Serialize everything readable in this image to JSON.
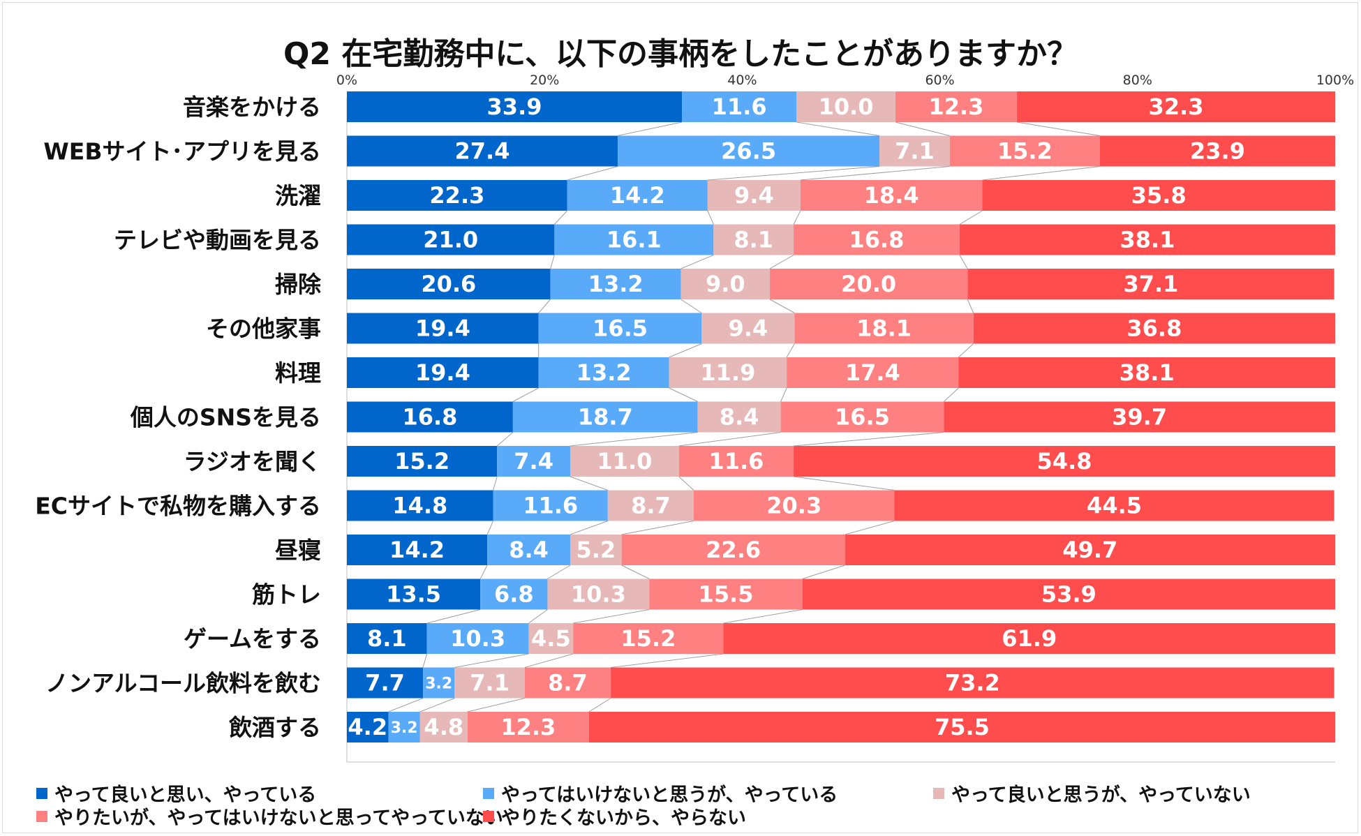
{
  "colors": [
    "#0066cc",
    "#5aaafa",
    "#e6b8b7",
    "#ff8080",
    "#ff4d4d"
  ],
  "chart_data": {
    "type": "bar",
    "orientation": "horizontal-stacked-100",
    "title": "Q2 在宅勤務中に、以下の事柄をしたことがありますか？",
    "xlim": [
      0,
      100
    ],
    "x_ticks": [
      "0%",
      "20%",
      "40%",
      "60%",
      "80%",
      "100%"
    ],
    "categories": [
      "音楽をかける",
      "WEBサイト･アプリを見る",
      "洗濯",
      "テレビや動画を見る",
      "掃除",
      "その他家事",
      "料理",
      "個人のSNSを見る",
      "ラジオを聞く",
      "ECサイトで私物を購入する",
      "昼寝",
      "筋トレ",
      "ゲームをする",
      "ノンアルコール飲料を飲む",
      "飲酒する"
    ],
    "series": [
      {
        "name": "やって良いと思い、やっている",
        "values": [
          33.9,
          27.4,
          22.3,
          21.0,
          20.6,
          19.4,
          19.4,
          16.8,
          15.2,
          14.8,
          14.2,
          13.5,
          8.1,
          7.7,
          4.2
        ],
        "labels": [
          "33.9",
          "27.4",
          "22.3",
          "21.0",
          "20.6",
          "19.4",
          "19.4",
          "16.8",
          "15.2",
          "14.8",
          "14.2",
          "13.5",
          "8.1",
          "7.7",
          "4.2"
        ]
      },
      {
        "name": "やってはいけないと思うが、やっている",
        "values": [
          11.6,
          26.5,
          14.2,
          16.1,
          13.2,
          16.5,
          13.2,
          18.7,
          7.4,
          11.6,
          8.4,
          6.8,
          10.3,
          3.2,
          3.2
        ],
        "labels": [
          "11.6",
          "26.5",
          "14.2",
          "16.1",
          "13.2",
          "16.5",
          "13.2",
          "18.7",
          "7.4",
          "11.6",
          "8.4",
          "6.8",
          "10.3",
          "3.2",
          "3.2"
        ]
      },
      {
        "name": "やって良いと思うが、やっていない",
        "values": [
          10.0,
          7.1,
          9.4,
          8.1,
          9.0,
          9.4,
          11.9,
          8.4,
          11.0,
          8.7,
          5.2,
          10.3,
          4.5,
          7.1,
          4.8
        ],
        "labels": [
          "10.0",
          "7.1",
          "9.4",
          "8.1",
          "9.0",
          "9.4",
          "11.9",
          "8.4",
          "11.0",
          "8.7",
          "5.2",
          "10.3",
          "4.5",
          "7.1",
          "4.8"
        ]
      },
      {
        "name": "やりたいが、やってはいけないと思ってやっていない",
        "values": [
          12.3,
          15.2,
          18.4,
          16.8,
          20.0,
          18.1,
          17.4,
          16.5,
          11.6,
          20.3,
          22.6,
          15.5,
          15.2,
          8.7,
          12.3
        ],
        "labels": [
          "12.3",
          "15.2",
          "18.4",
          "16.8",
          "20.0",
          "18.1",
          "17.4",
          "16.5",
          "11.6",
          "20.3",
          "22.6",
          "15.5",
          "15.2",
          "8.7",
          "12.3"
        ]
      },
      {
        "name": "やりたくないから、やらない",
        "values": [
          32.3,
          23.9,
          35.8,
          38.1,
          37.1,
          36.8,
          38.1,
          39.7,
          54.8,
          44.5,
          49.7,
          53.9,
          61.9,
          73.2,
          75.5
        ],
        "labels": [
          "32.3",
          "23.9",
          "35.8",
          "38.1",
          "37.1",
          "36.8",
          "38.1",
          "39.7",
          "54.8",
          "44.5",
          "49.7",
          "53.9",
          "61.9",
          "73.2",
          "75.5"
        ]
      }
    ],
    "legend": [
      "やって良いと思い、やっている",
      "やってはいけないと思うが、やっている",
      "やって良いと思うが、やっていない",
      "やりたいが、やってはいけないと思ってやっていない",
      "やりたくないから、やらない"
    ],
    "legend_position": "bottom"
  }
}
